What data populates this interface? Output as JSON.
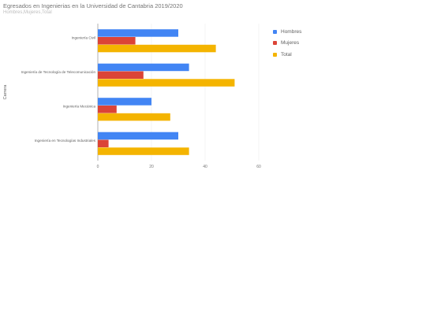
{
  "chart_data": {
    "type": "bar",
    "orientation": "horizontal",
    "title": "Egresados en Ingenierias en la Universidad de Cantabria 2019/2020",
    "subtitle": "Hombres,Mujeres,Total",
    "ylabel": "Carrera",
    "xlabel": "",
    "categories": [
      "Ingeniería Civil",
      "Ingeniería de Tecnología de Telecomunicación",
      "Ingeniería Mecánica",
      "Ingeniería en Tecnologías Industriales"
    ],
    "series": [
      {
        "name": "Hombres",
        "color": "#4285f4",
        "values": [
          30,
          34,
          20,
          30
        ]
      },
      {
        "name": "Mujeres",
        "color": "#db4437",
        "values": [
          14,
          17,
          7,
          4
        ]
      },
      {
        "name": "Total",
        "color": "#f4b400",
        "values": [
          44,
          51,
          27,
          34
        ]
      }
    ],
    "xlim": [
      0,
      60
    ],
    "xticks": [
      0,
      20,
      40,
      60
    ],
    "grid": true,
    "legend_position": "right"
  }
}
